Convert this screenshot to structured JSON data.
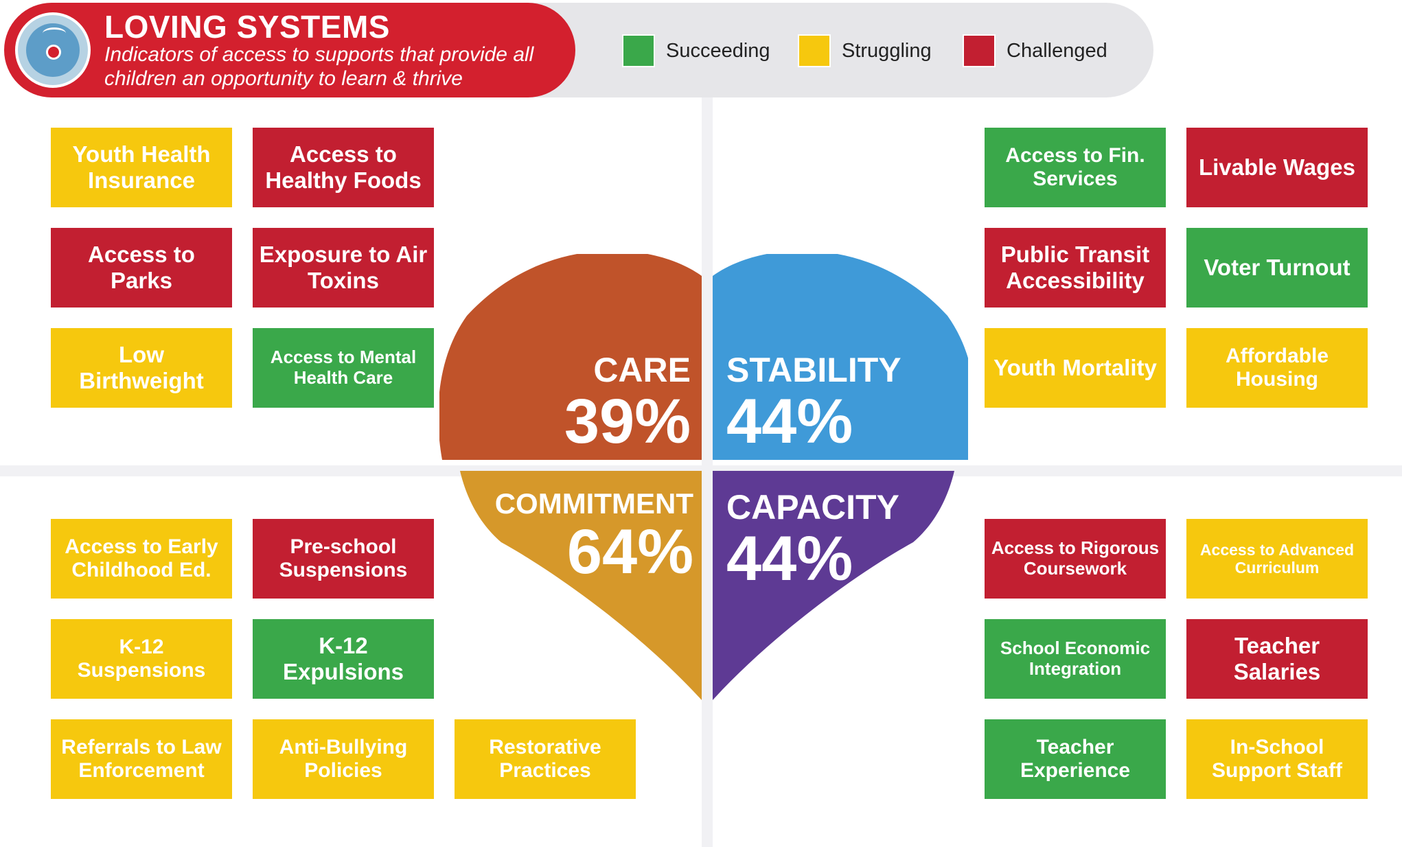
{
  "header": {
    "title": "LOVING SYSTEMS",
    "subtitle": "Indicators of access to supports that provide all children an opportunity to learn & thrive"
  },
  "legend": [
    {
      "label": "Succeeding",
      "color": "#3aa84a"
    },
    {
      "label": "Struggling",
      "color": "#f6c80e"
    },
    {
      "label": "Challenged",
      "color": "#c21f31"
    }
  ],
  "quadrants": {
    "care": {
      "name": "CARE",
      "percent": "39%",
      "color": "#c0532a"
    },
    "stability": {
      "name": "STABILITY",
      "percent": "44%",
      "color": "#3f9ad8"
    },
    "commitment": {
      "name": "COMMITMENT",
      "percent": "64%",
      "color": "#d6982a"
    },
    "capacity": {
      "name": "CAPACITY",
      "percent": "44%",
      "color": "#5e3a94"
    }
  },
  "indicators": {
    "care": [
      {
        "label": "Youth Health Insurance",
        "status": "Struggling"
      },
      {
        "label": "Access to Healthy Foods",
        "status": "Challenged"
      },
      {
        "label": "Access to Parks",
        "status": "Challenged"
      },
      {
        "label": "Exposure to Air Toxins",
        "status": "Challenged"
      },
      {
        "label": "Low Birthweight",
        "status": "Struggling"
      },
      {
        "label": "Access to Mental Health Care",
        "status": "Succeeding"
      }
    ],
    "stability": [
      {
        "label": "Access to Fin. Services",
        "status": "Succeeding"
      },
      {
        "label": "Livable Wages",
        "status": "Challenged"
      },
      {
        "label": "Public Transit Accessibility",
        "status": "Challenged"
      },
      {
        "label": "Voter Turnout",
        "status": "Succeeding"
      },
      {
        "label": "Youth Mortality",
        "status": "Struggling"
      },
      {
        "label": "Affordable Housing",
        "status": "Struggling"
      }
    ],
    "commitment": [
      {
        "label": "Access to Early Childhood Ed.",
        "status": "Struggling"
      },
      {
        "label": "Pre-school Suspensions",
        "status": "Challenged"
      },
      {
        "label": "K-12 Suspensions",
        "status": "Struggling"
      },
      {
        "label": "K-12 Expulsions",
        "status": "Succeeding"
      },
      {
        "label": "Referrals to Law Enforcement",
        "status": "Struggling"
      },
      {
        "label": "Anti-Bullying Policies",
        "status": "Struggling"
      },
      {
        "label": "Restorative Practices",
        "status": "Struggling"
      }
    ],
    "capacity": [
      {
        "label": "Access to Rigorous Coursework",
        "status": "Challenged"
      },
      {
        "label": "Access to Advanced Curriculum",
        "status": "Struggling"
      },
      {
        "label": "School Economic Integration",
        "status": "Succeeding"
      },
      {
        "label": "Teacher Salaries",
        "status": "Challenged"
      },
      {
        "label": "Teacher Experience",
        "status": "Succeeding"
      },
      {
        "label": "In-School Support Staff",
        "status": "Struggling"
      }
    ]
  }
}
